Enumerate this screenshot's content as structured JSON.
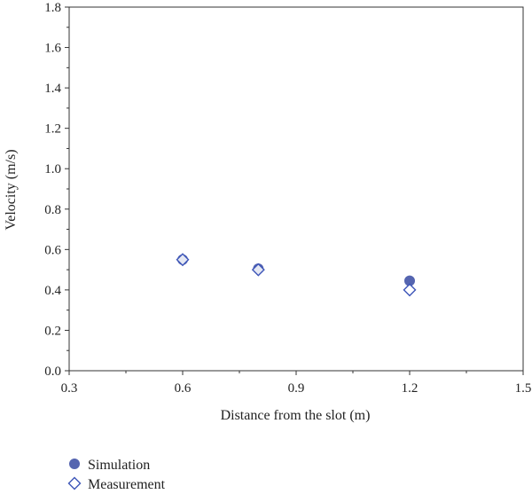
{
  "chart_data": {
    "type": "scatter",
    "xlabel": "Distance from the slot (m)",
    "ylabel": "Velocity (m/s)",
    "xlim": [
      0.3,
      1.5
    ],
    "ylim": [
      0.0,
      1.8
    ],
    "x_ticks": [
      "0.3",
      "0.6",
      "0.9",
      "1.2",
      "1.5"
    ],
    "y_ticks": [
      "0.0",
      "0.2",
      "0.4",
      "0.6",
      "0.8",
      "1.0",
      "1.2",
      "1.4",
      "1.6",
      "1.8"
    ],
    "grid": false,
    "legend_position": "bottom-left",
    "series": [
      {
        "name": "Simulation",
        "marker": "filled-circle",
        "color": "#5565b0",
        "x": [
          0.6,
          0.8,
          1.2
        ],
        "y": [
          0.55,
          0.505,
          0.445
        ]
      },
      {
        "name": "Measurement",
        "marker": "hollow-diamond",
        "color": "#3d55b8",
        "x": [
          0.6,
          0.8,
          1.2
        ],
        "y": [
          0.55,
          0.5,
          0.4
        ]
      }
    ]
  }
}
